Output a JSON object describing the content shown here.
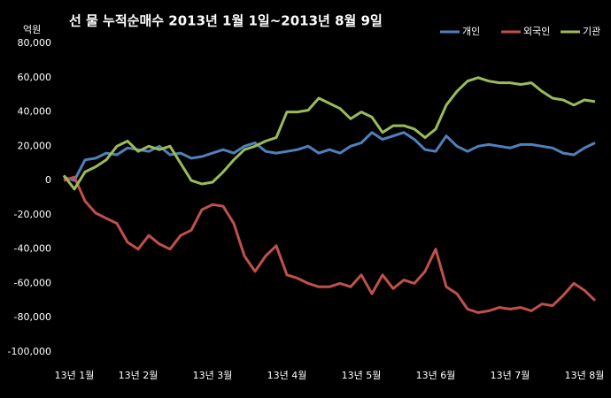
{
  "chart_data": {
    "type": "line",
    "title": "선 물 누적순매수 2013년 1월 1일~2013년 8월 9일",
    "y_label": "억원",
    "categories": [
      null,
      "13년 1월",
      null,
      null,
      null,
      null,
      null,
      "13년 2월",
      null,
      null,
      null,
      null,
      null,
      null,
      "13년 3월",
      null,
      null,
      null,
      null,
      null,
      null,
      "13년 4월",
      null,
      null,
      null,
      null,
      null,
      null,
      "13년 5월",
      null,
      null,
      null,
      null,
      null,
      null,
      "13년 6월",
      null,
      null,
      null,
      null,
      null,
      null,
      "13년 7월",
      null,
      null,
      null,
      null,
      null,
      null,
      "13년 8월",
      null
    ],
    "series": [
      {
        "name": "개인",
        "color": "#4f81bd",
        "values": [
          2000,
          0,
          12000,
          13000,
          16000,
          15000,
          19000,
          18000,
          17000,
          20000,
          15000,
          16000,
          13000,
          14000,
          16000,
          18000,
          16000,
          20000,
          22000,
          17000,
          16000,
          17000,
          18000,
          20000,
          16000,
          18000,
          16000,
          20000,
          22000,
          28000,
          24000,
          26000,
          28000,
          24000,
          18000,
          17000,
          26000,
          20000,
          17000,
          20000,
          21000,
          20000,
          19000,
          21000,
          21000,
          20000,
          19000,
          16000,
          15000,
          19000,
          22000
        ]
      },
      {
        "name": "외국인",
        "color": "#c0504d",
        "values": [
          0,
          2000,
          -12000,
          -19000,
          -22000,
          -25000,
          -36000,
          -40000,
          -32000,
          -37000,
          -40000,
          -32000,
          -29000,
          -17000,
          -14000,
          -15000,
          -25000,
          -44000,
          -53000,
          -44000,
          -38000,
          -55000,
          -57000,
          -60000,
          -62000,
          -62000,
          -60000,
          -62000,
          -55000,
          -66000,
          -55000,
          -63000,
          -58000,
          -60000,
          -53000,
          -40000,
          -62000,
          -66000,
          -75000,
          -77000,
          -76000,
          -74000,
          -75000,
          -74000,
          -76000,
          -72000,
          -73000,
          -67000,
          -60000,
          -64000,
          -70000
        ]
      },
      {
        "name": "기관",
        "color": "#9bbb59",
        "values": [
          3000,
          -5000,
          5000,
          8000,
          12000,
          20000,
          23000,
          17000,
          20000,
          18000,
          20000,
          10000,
          0,
          -2000,
          -1000,
          5000,
          12000,
          18000,
          20000,
          23000,
          25000,
          40000,
          40000,
          41000,
          48000,
          45000,
          42000,
          36000,
          40000,
          37000,
          28000,
          32000,
          32000,
          30000,
          25000,
          30000,
          44000,
          52000,
          58000,
          60000,
          58000,
          57000,
          57000,
          56000,
          57000,
          52000,
          48000,
          47000,
          44000,
          47000,
          46000
        ]
      }
    ],
    "ylim": [
      -100000,
      80000
    ],
    "yticks": [
      {
        "value": -100000,
        "label": "-100,000"
      },
      {
        "value": -80000,
        "label": "-80,000"
      },
      {
        "value": -60000,
        "label": "-60,000"
      },
      {
        "value": -40000,
        "label": "-40,000"
      },
      {
        "value": -20000,
        "label": "-20,000"
      },
      0,
      {
        "value": 20000,
        "label": "20,000"
      },
      {
        "value": 40000,
        "label": "40,000"
      },
      {
        "value": 60000,
        "label": "60,000"
      },
      {
        "value": 80000,
        "label": "80,000"
      }
    ],
    "grid": false,
    "legend": "top-right"
  }
}
